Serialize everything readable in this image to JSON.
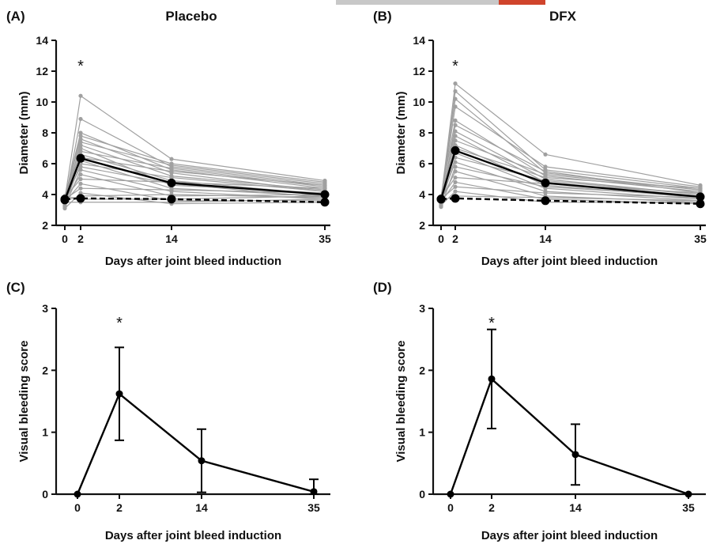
{
  "header_bar_colors": {
    "left": "#c8c8c8",
    "right": "#d0442c"
  },
  "colors": {
    "individual": "#a0a0a0",
    "mean": "#000000"
  },
  "chart_data": [
    {
      "panel": "(A)",
      "title": "Placebo",
      "type": "line",
      "xlabel": "Days after joint bleed induction",
      "ylabel": "Diameter (mm)",
      "xticks": [
        0,
        2,
        14,
        35
      ],
      "yticks": [
        2,
        4,
        6,
        8,
        10,
        12,
        14
      ],
      "xlim": [
        -1,
        35
      ],
      "ylim": [
        2,
        14
      ],
      "annotation": {
        "text": "*",
        "x": 2
      },
      "x": [
        0,
        2,
        14,
        35
      ],
      "individual_lines": [
        [
          3.7,
          10.4,
          6.3,
          4.9
        ],
        [
          3.5,
          8.9,
          5.8,
          4.6
        ],
        [
          3.8,
          8.0,
          5.6,
          4.4
        ],
        [
          3.6,
          7.8,
          6.0,
          4.8
        ],
        [
          3.9,
          7.6,
          5.4,
          4.2
        ],
        [
          3.4,
          7.4,
          5.9,
          4.7
        ],
        [
          3.7,
          7.2,
          5.2,
          4.3
        ],
        [
          3.3,
          7.0,
          4.6,
          4.1
        ],
        [
          3.8,
          6.8,
          5.7,
          4.5
        ],
        [
          3.5,
          6.6,
          4.9,
          4.0
        ],
        [
          3.6,
          6.4,
          5.5,
          4.6
        ],
        [
          3.9,
          6.2,
          4.4,
          3.9
        ],
        [
          3.4,
          6.0,
          5.1,
          4.2
        ],
        [
          3.7,
          5.8,
          4.7,
          3.8
        ],
        [
          3.2,
          5.6,
          4.2,
          3.7
        ],
        [
          3.6,
          5.3,
          3.9,
          4.0
        ],
        [
          3.8,
          5.0,
          4.8,
          4.4
        ],
        [
          3.5,
          4.7,
          3.6,
          3.6
        ],
        [
          3.7,
          4.4,
          4.3,
          4.1
        ],
        [
          3.1,
          4.1,
          3.4,
          3.5
        ],
        [
          3.6,
          3.9,
          4.0,
          3.8
        ],
        [
          3.9,
          3.7,
          3.7,
          3.9
        ],
        [
          3.5,
          3.5,
          3.5,
          3.7
        ]
      ],
      "series": [
        {
          "values": [
            3.65,
            6.35,
            4.75,
            4.0
          ],
          "style": "solid"
        },
        {
          "values": [
            3.7,
            3.75,
            3.7,
            3.5
          ],
          "style": "dashed"
        }
      ]
    },
    {
      "panel": "(B)",
      "title": "DFX",
      "type": "line",
      "xlabel": "Days after joint bleed induction",
      "ylabel": "Diameter (mm)",
      "xticks": [
        0,
        2,
        14,
        35
      ],
      "yticks": [
        2,
        4,
        6,
        8,
        10,
        12,
        14
      ],
      "xlim": [
        -1,
        35
      ],
      "ylim": [
        2,
        14
      ],
      "annotation": {
        "text": "*",
        "x": 2
      },
      "x": [
        0,
        2,
        14,
        35
      ],
      "individual_lines": [
        [
          3.7,
          11.2,
          6.6,
          4.6
        ],
        [
          3.5,
          10.7,
          5.6,
          4.4
        ],
        [
          3.8,
          10.2,
          5.4,
          4.3
        ],
        [
          3.6,
          9.7,
          5.8,
          4.5
        ],
        [
          3.9,
          8.8,
          5.2,
          4.2
        ],
        [
          3.4,
          8.5,
          5.5,
          4.1
        ],
        [
          3.7,
          8.1,
          5.0,
          4.0
        ],
        [
          3.3,
          7.8,
          4.8,
          3.9
        ],
        [
          3.8,
          7.5,
          5.3,
          4.3
        ],
        [
          3.5,
          7.2,
          4.6,
          3.8
        ],
        [
          3.6,
          7.0,
          5.1,
          4.4
        ],
        [
          3.9,
          6.7,
          4.4,
          3.7
        ],
        [
          3.4,
          6.4,
          4.9,
          4.0
        ],
        [
          3.7,
          6.1,
          4.2,
          3.6
        ],
        [
          3.2,
          5.8,
          4.5,
          3.9
        ],
        [
          3.6,
          5.5,
          3.9,
          3.5
        ],
        [
          3.8,
          5.1,
          4.7,
          4.1
        ],
        [
          3.5,
          4.8,
          3.7,
          3.4
        ],
        [
          3.7,
          4.5,
          4.1,
          3.8
        ],
        [
          3.3,
          4.2,
          3.5,
          3.5
        ],
        [
          3.6,
          3.9,
          3.8,
          3.6
        ]
      ],
      "series": [
        {
          "values": [
            3.7,
            6.85,
            4.75,
            3.85
          ],
          "style": "solid"
        },
        {
          "values": [
            3.7,
            3.75,
            3.6,
            3.4
          ],
          "style": "dashed"
        }
      ]
    },
    {
      "panel": "(C)",
      "type": "line",
      "xlabel": "Days after joint bleed induction",
      "ylabel": "Visual bleeding score",
      "xticks": [
        0,
        2,
        14,
        35
      ],
      "yticks": [
        0,
        1,
        2,
        3
      ],
      "ylim": [
        0,
        3
      ],
      "annotation": {
        "text": "*",
        "x": 2
      },
      "x": [
        0,
        2,
        14,
        35
      ],
      "series": [
        {
          "values": [
            0,
            1.62,
            0.54,
            0.04
          ],
          "error": [
            0,
            0.75,
            0.51,
            0.2
          ]
        }
      ]
    },
    {
      "panel": "(D)",
      "type": "line",
      "xlabel": "Days after joint bleed induction",
      "ylabel": "Visual bleeding score",
      "xticks": [
        0,
        2,
        14,
        35
      ],
      "yticks": [
        0,
        1,
        2,
        3
      ],
      "ylim": [
        0,
        3
      ],
      "annotation": {
        "text": "*",
        "x": 2
      },
      "x": [
        0,
        2,
        14,
        35
      ],
      "series": [
        {
          "values": [
            0,
            1.86,
            0.64,
            0.0
          ],
          "error": [
            0,
            0.8,
            0.49,
            0
          ]
        }
      ]
    }
  ]
}
